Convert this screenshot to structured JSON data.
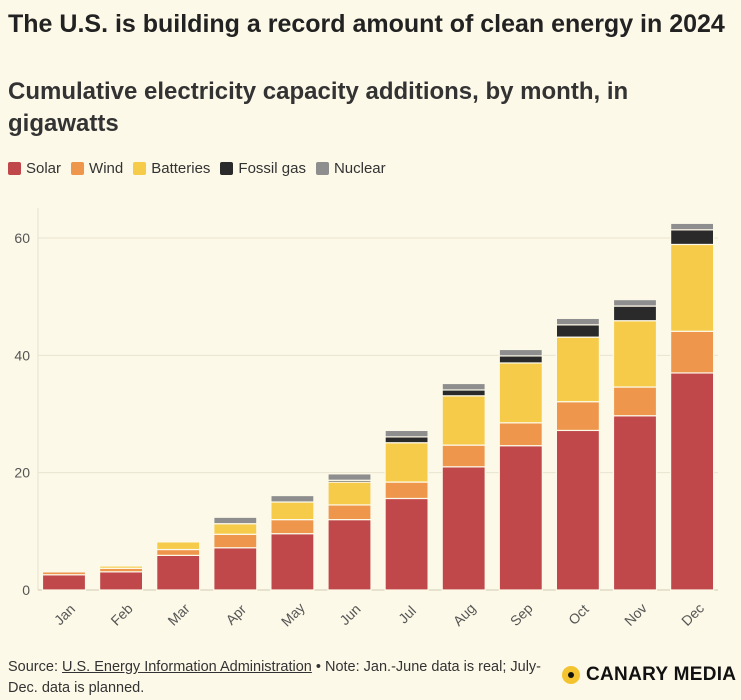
{
  "header": {
    "title": "The U.S. is building a record amount of clean energy in 2024",
    "subtitle": "Cumulative electricity capacity additions, by month, in gigawatts"
  },
  "legend": [
    {
      "label": "Solar",
      "color": "#c0474a"
    },
    {
      "label": "Wind",
      "color": "#ee964b"
    },
    {
      "label": "Batteries",
      "color": "#f6cb4a"
    },
    {
      "label": "Fossil gas",
      "color": "#2a2a2a"
    },
    {
      "label": "Nuclear",
      "color": "#8e8e8e"
    }
  ],
  "chart_data": {
    "type": "bar",
    "stacked": true,
    "categories": [
      "Jan",
      "Feb",
      "Mar",
      "Apr",
      "May",
      "Jun",
      "Jul",
      "Aug",
      "Sep",
      "Oct",
      "Nov",
      "Dec"
    ],
    "series": [
      {
        "name": "Solar",
        "color": "#c0474a",
        "values": [
          2.6,
          3.1,
          5.9,
          7.2,
          9.6,
          12.0,
          15.6,
          21.0,
          24.6,
          27.2,
          29.7,
          37.0
        ]
      },
      {
        "name": "Wind",
        "color": "#ee964b",
        "values": [
          0.5,
          0.6,
          1.0,
          2.3,
          2.4,
          2.5,
          2.8,
          3.7,
          3.9,
          4.9,
          4.9,
          7.1
        ]
      },
      {
        "name": "Batteries",
        "color": "#f6cb4a",
        "values": [
          0.2,
          0.4,
          1.3,
          1.8,
          3.0,
          3.9,
          6.7,
          8.4,
          10.2,
          11.0,
          11.3,
          14.8
        ]
      },
      {
        "name": "Fossil gas",
        "color": "#2a2a2a",
        "values": [
          0.0,
          0.0,
          0.0,
          0.0,
          0.0,
          0.3,
          1.0,
          1.0,
          1.2,
          2.1,
          2.5,
          2.5
        ]
      },
      {
        "name": "Nuclear",
        "color": "#8e8e8e",
        "values": [
          0.1,
          0.1,
          0.2,
          1.1,
          1.1,
          1.1,
          1.1,
          1.1,
          1.1,
          1.1,
          1.1,
          1.1
        ]
      }
    ],
    "ylim": [
      0,
      64
    ],
    "yticks": [
      0,
      20,
      40,
      60
    ],
    "grid": true,
    "legend_position": "top-left"
  },
  "footer": {
    "source_label": "Source:",
    "source_name": "U.S. Energy Information Administration",
    "note": "• Note: Jan.-June data is real; July-Dec. data is planned."
  },
  "brand": {
    "name": "CANARY MEDIA"
  }
}
